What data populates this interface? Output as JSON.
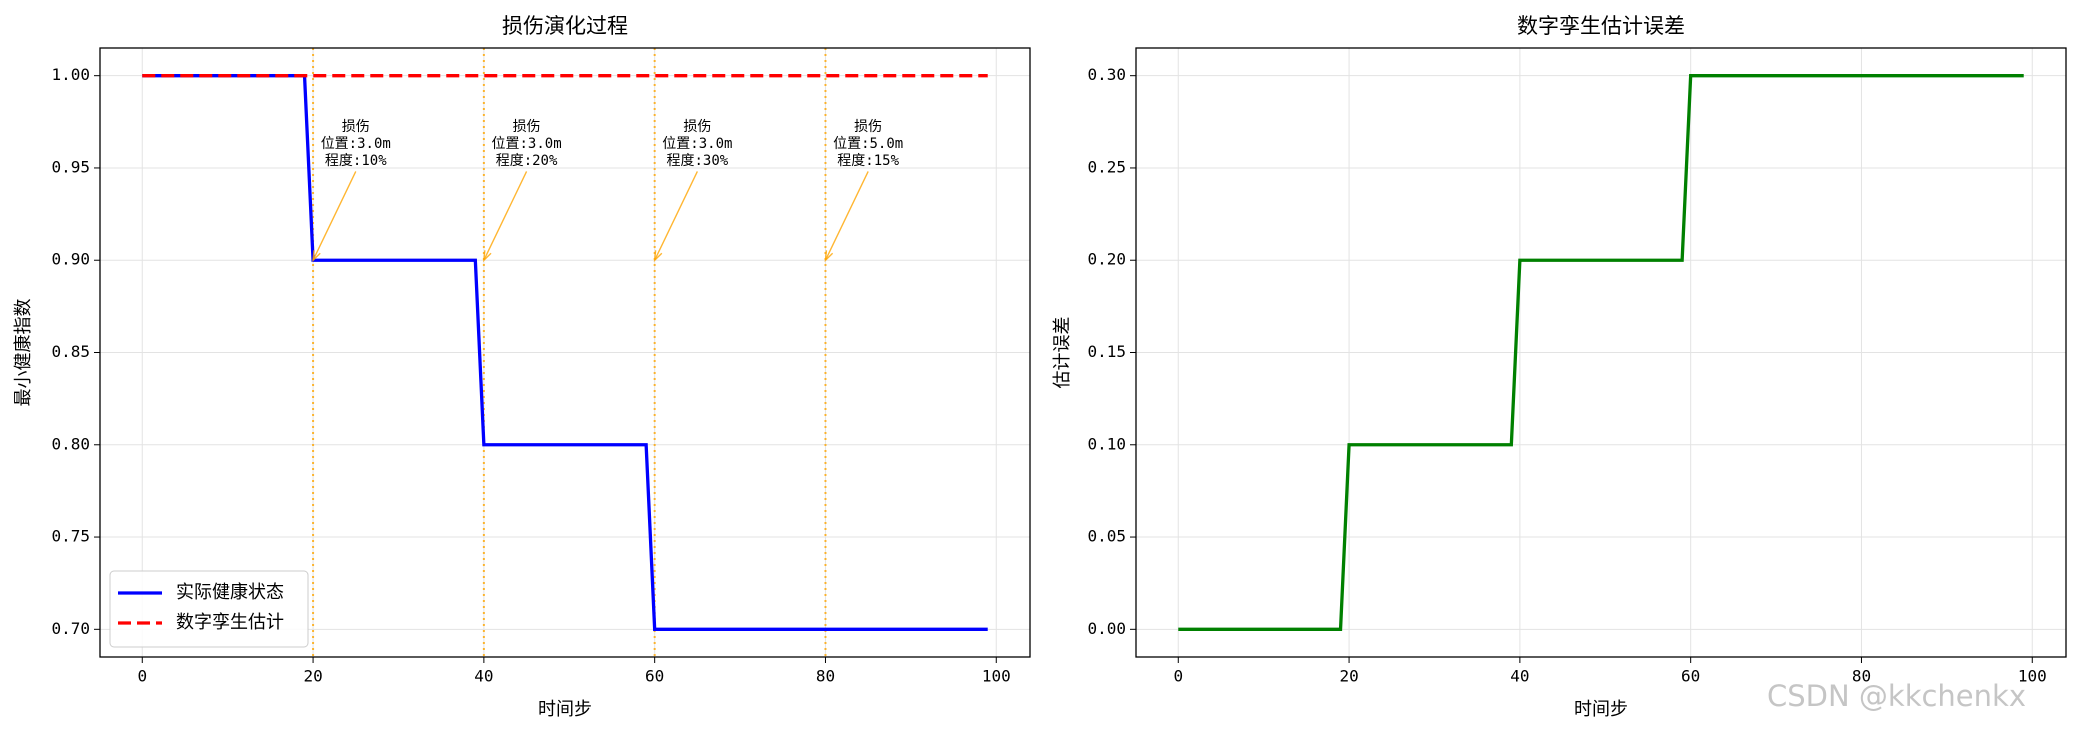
{
  "chart_data": [
    {
      "type": "line",
      "title": "损伤演化过程",
      "xlabel": "时间步",
      "ylabel": "最小健康指数",
      "xlim": [
        -4.95,
        103.95
      ],
      "ylim": [
        0.685,
        1.015
      ],
      "xticks": [
        0,
        20,
        40,
        60,
        80,
        100
      ],
      "yticks": [
        {
          "value": 0.7,
          "label": "0.70"
        },
        {
          "value": 0.75,
          "label": "0.75"
        },
        {
          "value": 0.8,
          "label": "0.80"
        },
        {
          "value": 0.85,
          "label": "0.85"
        },
        {
          "value": 0.9,
          "label": "0.90"
        },
        {
          "value": 0.95,
          "label": "0.95"
        },
        {
          "value": 1.0,
          "label": "1.00"
        }
      ],
      "grid": true,
      "legend": "lower left",
      "series": [
        {
          "name": "实际健康状态",
          "color": "#0000ff",
          "dash": false,
          "x": [
            0,
            19,
            20,
            39,
            40,
            59,
            60,
            99
          ],
          "values": [
            1.0,
            1.0,
            0.9,
            0.9,
            0.8,
            0.8,
            0.7,
            0.7
          ]
        },
        {
          "name": "数字孪生估计",
          "color": "#ff0000",
          "dash": true,
          "x": [
            0,
            99
          ],
          "values": [
            1.0,
            1.0
          ]
        }
      ],
      "vlines": [
        20,
        40,
        60,
        80
      ],
      "vline_color": "#ffa500",
      "annotations": [
        {
          "text": [
            "损伤",
            "位置:3.0m",
            "程度:10%"
          ],
          "xy": [
            20,
            0.9
          ],
          "xytext": [
            25,
            0.963
          ]
        },
        {
          "text": [
            "损伤",
            "位置:3.0m",
            "程度:20%"
          ],
          "xy": [
            40,
            0.9
          ],
          "xytext": [
            45,
            0.963
          ]
        },
        {
          "text": [
            "损伤",
            "位置:3.0m",
            "程度:30%"
          ],
          "xy": [
            60,
            0.9
          ],
          "xytext": [
            65,
            0.963
          ]
        },
        {
          "text": [
            "损伤",
            "位置:5.0m",
            "程度:15%"
          ],
          "xy": [
            80,
            0.9
          ],
          "xytext": [
            85,
            0.963
          ]
        }
      ]
    },
    {
      "type": "line",
      "title": "数字孪生估计误差",
      "xlabel": "时间步",
      "ylabel": "估计误差",
      "xlim": [
        -4.95,
        103.95
      ],
      "ylim": [
        -0.015,
        0.315
      ],
      "xticks": [
        0,
        20,
        40,
        60,
        80,
        100
      ],
      "yticks": [
        {
          "value": 0.0,
          "label": "0.00"
        },
        {
          "value": 0.05,
          "label": "0.05"
        },
        {
          "value": 0.1,
          "label": "0.10"
        },
        {
          "value": 0.15,
          "label": "0.15"
        },
        {
          "value": 0.2,
          "label": "0.20"
        },
        {
          "value": 0.25,
          "label": "0.25"
        },
        {
          "value": 0.3,
          "label": "0.30"
        }
      ],
      "grid": true,
      "series": [
        {
          "color": "#008000",
          "dash": false,
          "x": [
            0,
            19,
            20,
            39,
            40,
            59,
            60,
            99
          ],
          "values": [
            0.0,
            0.0,
            0.1,
            0.1,
            0.2,
            0.2,
            0.3,
            0.3
          ]
        }
      ]
    }
  ],
  "watermark": "CSDN @kkchenkx"
}
